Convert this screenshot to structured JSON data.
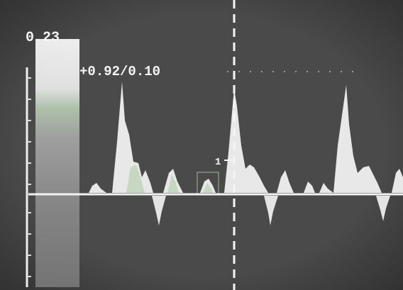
{
  "scale_label": "0.23",
  "velocity_readout": "+0.92/0.10",
  "cursor_label": "1"
}
